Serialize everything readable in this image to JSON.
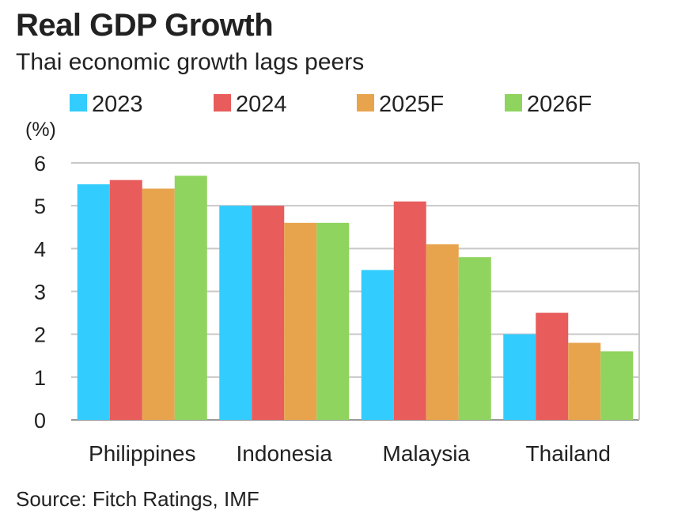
{
  "header": {
    "title": "Real GDP Growth",
    "subtitle": "Thai economic growth lags peers"
  },
  "footer": {
    "source": "Source: Fitch Ratings, IMF"
  },
  "colors": {
    "2023": "#33ccff",
    "2024": "#e85c5c",
    "2025F": "#e8a44d",
    "2026F": "#8fd45e",
    "grid": "#c8c8c8",
    "axis": "#999999"
  },
  "chart_data": {
    "type": "bar",
    "title": "Real GDP Growth",
    "subtitle": "Thai economic growth lags peers",
    "ylabel": "(%)",
    "xlabel": "",
    "categories": [
      "Philippines",
      "Indonesia",
      "Malaysia",
      "Thailand"
    ],
    "series": [
      {
        "name": "2023",
        "values": [
          5.5,
          5.0,
          3.5,
          2.0
        ]
      },
      {
        "name": "2024",
        "values": [
          5.6,
          5.0,
          5.1,
          2.5
        ]
      },
      {
        "name": "2025F",
        "values": [
          5.4,
          4.6,
          4.1,
          1.8
        ]
      },
      {
        "name": "2026F",
        "values": [
          5.7,
          4.6,
          3.8,
          1.6
        ]
      }
    ],
    "ylim": [
      0,
      6
    ],
    "yticks": [
      0,
      1,
      2,
      3,
      4,
      5,
      6
    ],
    "grid": true,
    "legend_position": "top",
    "source": "Source: Fitch Ratings, IMF"
  }
}
